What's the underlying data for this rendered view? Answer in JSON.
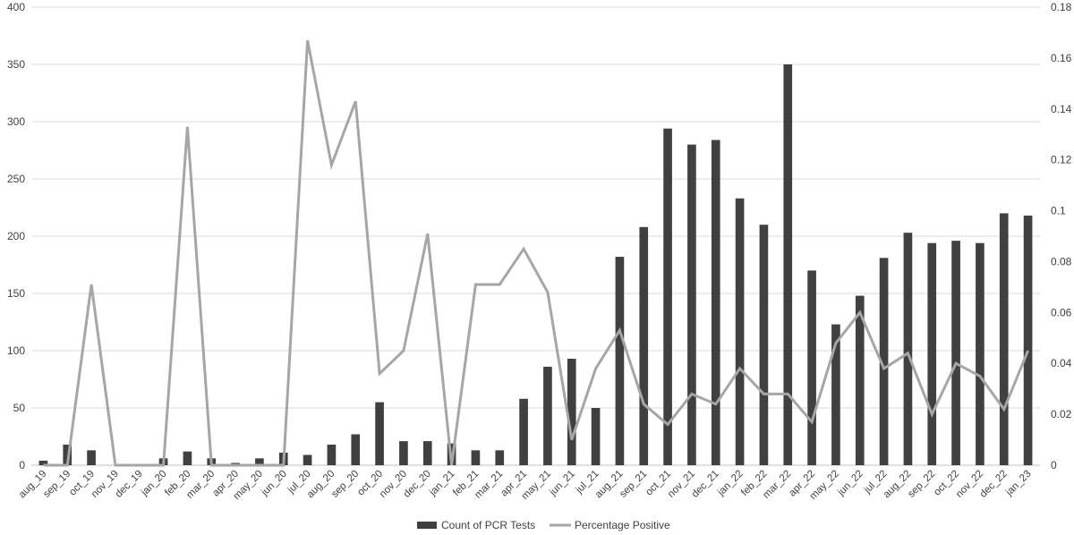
{
  "chart_data": {
    "type": "bar+line",
    "categories": [
      "aug_19",
      "sep_19",
      "oct_19",
      "nov_19",
      "dec_19",
      "jan_20",
      "feb_20",
      "mar_20",
      "apr_20",
      "may_20",
      "jun_20",
      "jul_20",
      "aug_20",
      "sep_20",
      "oct_20",
      "nov_20",
      "dec_20",
      "jan_21",
      "feb_21",
      "mar_21",
      "apr_21",
      "may_21",
      "jun_21",
      "jul_21",
      "aug_21",
      "sep_21",
      "oct_21",
      "nov_21",
      "dec_21",
      "jan_22",
      "feb_22",
      "mar_22",
      "apr_22",
      "may_22",
      "jun_22",
      "jul_22",
      "aug_22",
      "sep_22",
      "oct_22",
      "nov_22",
      "dec_22",
      "jan_23"
    ],
    "series": [
      {
        "name": "Count of PCR Tests",
        "type": "bar",
        "axis": "left",
        "color": "#404040",
        "values": [
          4,
          18,
          13,
          0,
          0,
          6,
          12,
          6,
          2,
          6,
          11,
          9,
          18,
          27,
          55,
          21,
          21,
          19,
          13,
          13,
          58,
          86,
          93,
          50,
          182,
          208,
          294,
          280,
          284,
          233,
          210,
          350,
          170,
          123,
          148,
          181,
          203,
          194,
          196,
          194,
          220,
          218
        ]
      },
      {
        "name": "Percentage Positive",
        "type": "line",
        "axis": "right",
        "color": "#a6a6a6",
        "values": [
          0,
          0,
          0.071,
          0,
          0,
          0,
          0.133,
          0,
          0,
          0,
          0,
          0.167,
          0.118,
          0.143,
          0.036,
          0.045,
          0.091,
          0,
          0.071,
          0.071,
          0.085,
          0.068,
          0.01,
          0.038,
          0.053,
          0.024,
          0.016,
          0.028,
          0.024,
          0.038,
          0.028,
          0.028,
          0.017,
          0.048,
          0.06,
          0.038,
          0.044,
          0.02,
          0.04,
          0.035,
          0.022,
          0.045
        ]
      }
    ],
    "y_left": {
      "ylim": [
        0,
        400
      ],
      "ticks": [
        "0",
        "50",
        "100",
        "150",
        "200",
        "250",
        "300",
        "350",
        "400"
      ]
    },
    "y_right": {
      "ylim": [
        0,
        0.18
      ],
      "ticks": [
        "0",
        "0.02",
        "0.04",
        "0.06",
        "0.08",
        "0.1",
        "0.12",
        "0.14",
        "0.16",
        "0.18"
      ]
    },
    "grid": true,
    "legend": {
      "position": "bottom",
      "items": [
        "Count of PCR Tests",
        "Percentage Positive"
      ]
    }
  }
}
